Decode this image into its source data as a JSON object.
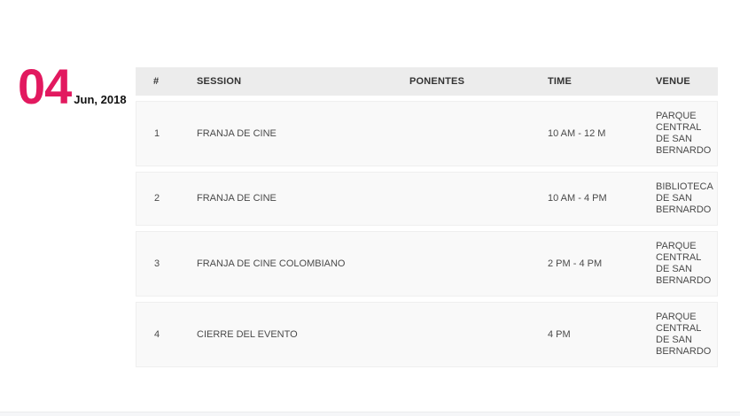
{
  "date": {
    "day": "04",
    "month_year": "Jun, 2018"
  },
  "table": {
    "columns": [
      "#",
      "SESSION",
      "PONENTES",
      "TIME",
      "VENUE"
    ],
    "rows": [
      {
        "num": "1",
        "session": "FRANJA DE CINE",
        "ponentes": "",
        "time": "10 AM - 12 M",
        "venue": "PARQUE\nCENTRAL\nDE SAN\nBERNARDO"
      },
      {
        "num": "2",
        "session": "FRANJA DE CINE",
        "ponentes": "",
        "time": "10 AM - 4 PM",
        "venue": "BIBLIOTECA\nDE SAN\nBERNARDO"
      },
      {
        "num": "3",
        "session": "FRANJA DE CINE COLOMBIANO",
        "ponentes": "",
        "time": "2 PM - 4 PM",
        "venue": "PARQUE\nCENTRAL\nDE SAN\nBERNARDO"
      },
      {
        "num": "4",
        "session": "CIERRE DEL EVENTO",
        "ponentes": "",
        "time": "4 PM",
        "venue": "PARQUE\nCENTRAL\nDE SAN\nBERNARDO"
      }
    ]
  },
  "colors": {
    "accent_pink": "#e2195f",
    "header_bg": "#ececec",
    "row_bg": "#f9f9f9",
    "header_text": "#333333",
    "body_text": "#4a4a4a",
    "page_bg": "#ffffff"
  }
}
